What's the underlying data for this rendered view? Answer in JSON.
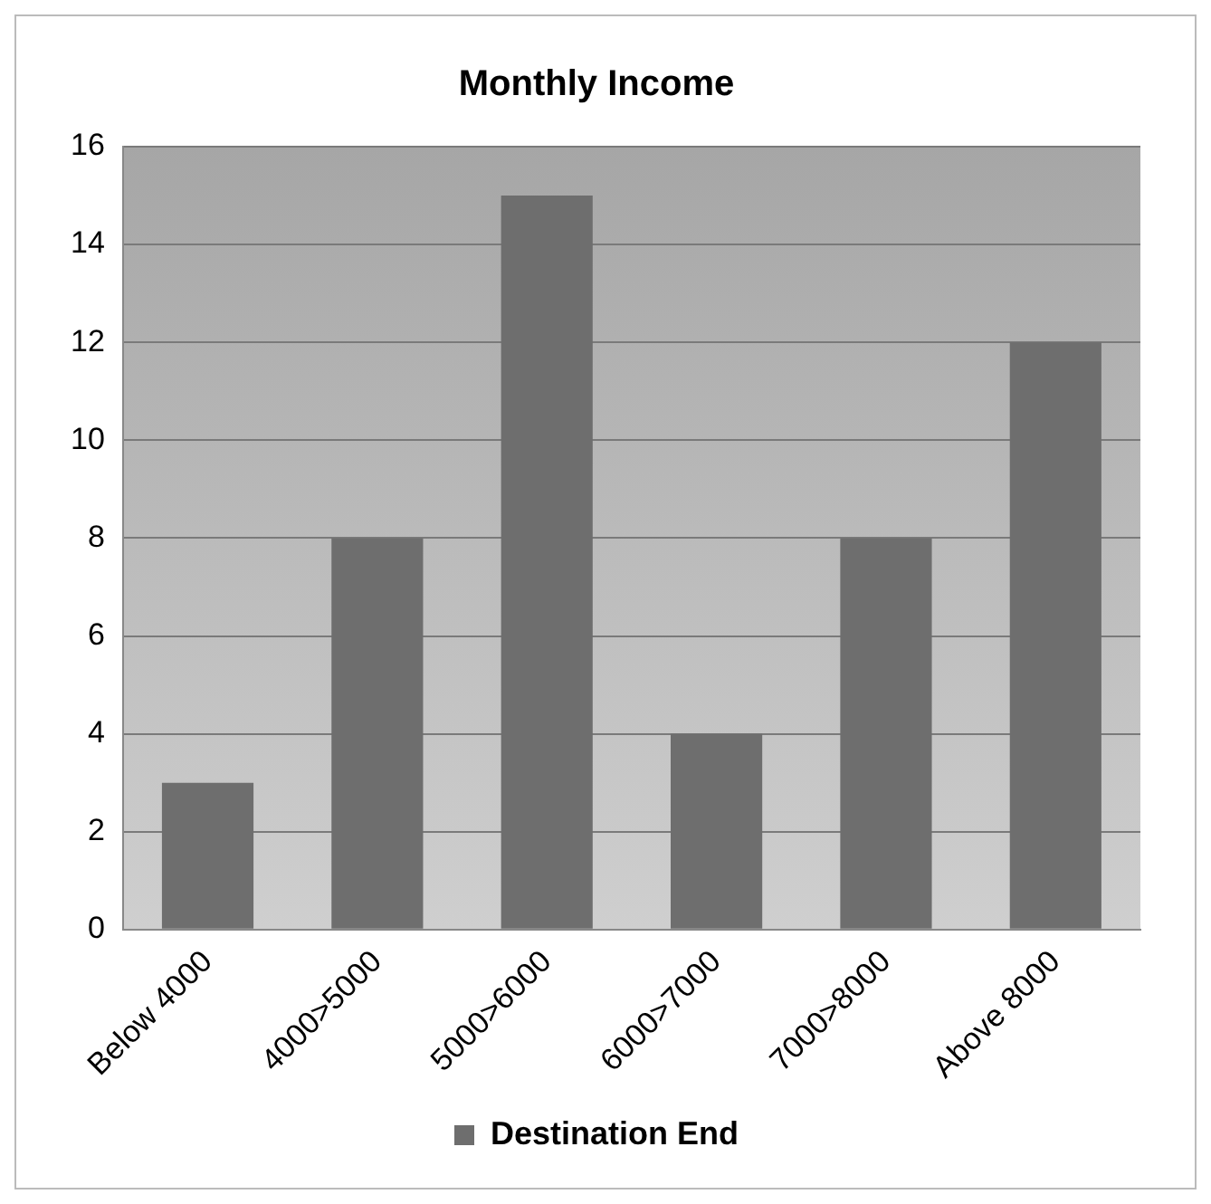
{
  "chart_data": {
    "type": "bar",
    "title": "Monthly Income",
    "categories": [
      "Below 4000",
      "4000>5000",
      "5000>6000",
      "6000>7000",
      "7000>8000",
      "Above 8000"
    ],
    "series": [
      {
        "name": "Destination End",
        "color": "#6e6e6e",
        "values": [
          3,
          8,
          15,
          4,
          8,
          12
        ]
      }
    ],
    "ylim": [
      0,
      16
    ],
    "yticks": [
      0,
      2,
      4,
      6,
      8,
      10,
      12,
      14,
      16
    ],
    "grid": "y",
    "legend": "bottom"
  }
}
